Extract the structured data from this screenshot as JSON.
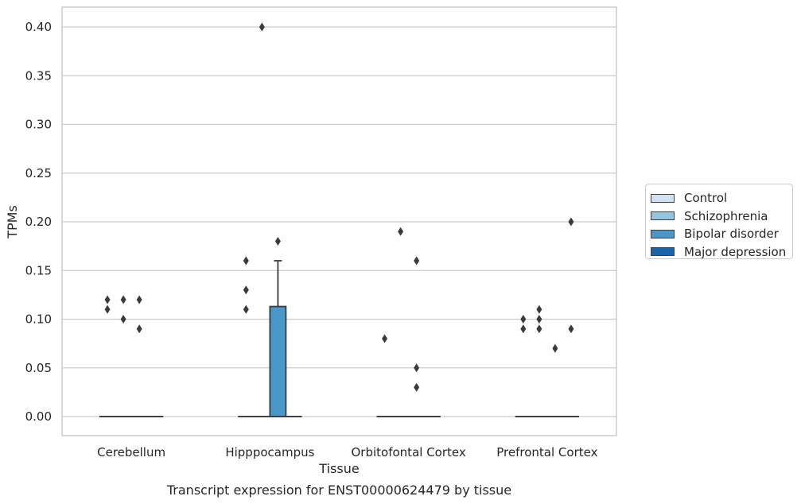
{
  "chart_data": {
    "type": "box",
    "title": "Transcript expression for ENST00000624479 by tissue",
    "xlabel": "Tissue",
    "ylabel": "TPMs",
    "ylim": [
      -0.02,
      0.42
    ],
    "yticks": [
      0.0,
      0.05,
      0.1,
      0.15,
      0.2,
      0.25,
      0.3,
      0.35,
      0.4
    ],
    "ytick_labels": [
      "0.00",
      "0.05",
      "0.10",
      "0.15",
      "0.20",
      "0.25",
      "0.30",
      "0.35",
      "0.40"
    ],
    "categories": [
      "Cerebellum",
      "Hipppocampus",
      "Orbitofontal Cortex",
      "Prefrontal Cortex"
    ],
    "grid": "horizontal",
    "legend_position": "right",
    "series": [
      {
        "name": "Control",
        "color": "#d0e1f2",
        "boxes": [
          {
            "q1": 0,
            "median": 0,
            "q3": 0,
            "whisker_low": 0,
            "whisker_high": 0,
            "outliers": [
              0.12,
              0.11
            ]
          },
          {
            "q1": 0,
            "median": 0,
            "q3": 0,
            "whisker_low": 0,
            "whisker_high": 0,
            "outliers": [
              0.16,
              0.13,
              0.11
            ]
          },
          {
            "q1": 0,
            "median": 0,
            "q3": 0,
            "whisker_low": 0,
            "whisker_high": 0,
            "outliers": [
              0.08
            ]
          },
          {
            "q1": 0,
            "median": 0,
            "q3": 0,
            "whisker_low": 0,
            "whisker_high": 0,
            "outliers": [
              0.1,
              0.09
            ]
          }
        ]
      },
      {
        "name": "Schizophrenia",
        "color": "#94c4df",
        "boxes": [
          {
            "q1": 0,
            "median": 0,
            "q3": 0,
            "whisker_low": 0,
            "whisker_high": 0,
            "outliers": [
              0.12,
              0.1
            ]
          },
          {
            "q1": 0,
            "median": 0,
            "q3": 0,
            "whisker_low": 0,
            "whisker_high": 0,
            "outliers": [
              0.4
            ]
          },
          {
            "q1": 0,
            "median": 0,
            "q3": 0,
            "whisker_low": 0,
            "whisker_high": 0,
            "outliers": [
              0.19
            ]
          },
          {
            "q1": 0,
            "median": 0,
            "q3": 0,
            "whisker_low": 0,
            "whisker_high": 0,
            "outliers": [
              0.11,
              0.1,
              0.09
            ]
          }
        ]
      },
      {
        "name": "Bipolar disorder",
        "color": "#4a98c9",
        "boxes": [
          {
            "q1": 0,
            "median": 0,
            "q3": 0,
            "whisker_low": 0,
            "whisker_high": 0,
            "outliers": [
              0.12,
              0.09
            ]
          },
          {
            "q1": 0,
            "median": 0,
            "q3": 0.113,
            "whisker_low": 0,
            "whisker_high": 0.16,
            "outliers": [
              0.18
            ]
          },
          {
            "q1": 0,
            "median": 0,
            "q3": 0,
            "whisker_low": 0,
            "whisker_high": 0,
            "outliers": [
              0.16,
              0.05,
              0.03
            ]
          },
          {
            "q1": 0,
            "median": 0,
            "q3": 0,
            "whisker_low": 0,
            "whisker_high": 0,
            "outliers": [
              0.07
            ]
          }
        ]
      },
      {
        "name": "Major depression",
        "color": "#1764ab",
        "boxes": [
          {
            "q1": 0,
            "median": 0,
            "q3": 0,
            "whisker_low": 0,
            "whisker_high": 0,
            "outliers": []
          },
          {
            "q1": 0,
            "median": 0,
            "q3": 0,
            "whisker_low": 0,
            "whisker_high": 0,
            "outliers": []
          },
          {
            "q1": 0,
            "median": 0,
            "q3": 0,
            "whisker_low": 0,
            "whisker_high": 0,
            "outliers": []
          },
          {
            "q1": 0,
            "median": 0,
            "q3": 0,
            "whisker_low": 0,
            "whisker_high": 0,
            "outliers": [
              0.2,
              0.09
            ]
          }
        ]
      }
    ]
  }
}
